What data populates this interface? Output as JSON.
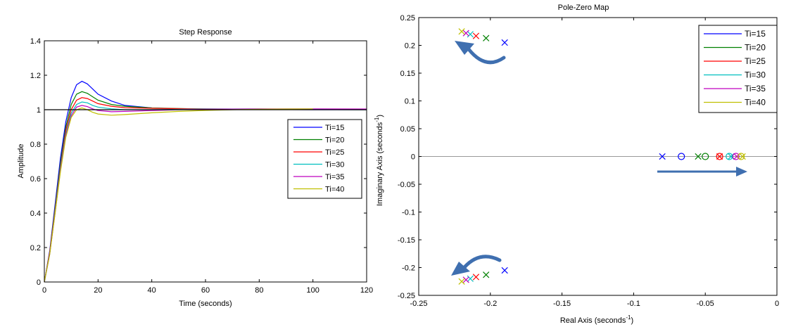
{
  "chart_data": [
    {
      "type": "line",
      "title": "Step Response",
      "xlabel": "Time (seconds)",
      "ylabel": "Amplitude",
      "xlim": [
        0,
        120
      ],
      "ylim": [
        0,
        1.4
      ],
      "xticks": [
        "0",
        "20",
        "40",
        "60",
        "80",
        "100",
        "120"
      ],
      "yticks": [
        "0",
        "0.2",
        "0.4",
        "0.6",
        "0.8",
        "1",
        "1.2",
        "1.4"
      ],
      "grid": false,
      "legend_position": "right",
      "reference_value": 1,
      "series": [
        {
          "name": "Ti=15",
          "color": "#0000ff",
          "peak_time": 14,
          "peak": 1.165,
          "end_time": 120,
          "x": [
            0,
            2,
            4,
            6,
            8,
            10,
            12,
            14,
            16,
            18,
            20,
            25,
            30,
            40,
            50,
            60,
            80,
            100,
            120
          ],
          "y": [
            0,
            0.18,
            0.45,
            0.72,
            0.93,
            1.07,
            1.145,
            1.165,
            1.15,
            1.12,
            1.09,
            1.05,
            1.025,
            1.01,
            1.005,
            1.002,
            1.001,
            1.0,
            1.0
          ]
        },
        {
          "name": "Ti=20",
          "color": "#008000",
          "peak_time": 14,
          "peak": 1.105,
          "end_time": 120,
          "x": [
            0,
            2,
            4,
            6,
            8,
            10,
            12,
            14,
            16,
            18,
            20,
            25,
            30,
            40,
            50,
            60,
            80,
            100,
            120
          ],
          "y": [
            0,
            0.17,
            0.43,
            0.69,
            0.9,
            1.03,
            1.09,
            1.105,
            1.095,
            1.075,
            1.055,
            1.03,
            1.02,
            1.01,
            1.007,
            1.004,
            1.002,
            1.001,
            1.0
          ]
        },
        {
          "name": "Ti=25",
          "color": "#ff0000",
          "peak_time": 14,
          "peak": 1.07,
          "end_time": 120,
          "x": [
            0,
            2,
            4,
            6,
            8,
            10,
            12,
            14,
            16,
            18,
            20,
            25,
            30,
            40,
            50,
            60,
            80,
            100,
            120
          ],
          "y": [
            0,
            0.17,
            0.42,
            0.67,
            0.88,
            1.0,
            1.055,
            1.07,
            1.065,
            1.05,
            1.035,
            1.02,
            1.012,
            1.008,
            1.006,
            1.005,
            1.003,
            1.002,
            1.001
          ]
        },
        {
          "name": "Ti=30",
          "color": "#00bfbf",
          "peak_time": 14,
          "peak": 1.045,
          "end_time": 120,
          "x": [
            0,
            2,
            4,
            6,
            8,
            10,
            12,
            14,
            16,
            18,
            20,
            25,
            30,
            40,
            50,
            60,
            80,
            100,
            120
          ],
          "y": [
            0,
            0.16,
            0.41,
            0.66,
            0.86,
            0.98,
            1.03,
            1.045,
            1.04,
            1.025,
            1.015,
            1.005,
            1.0,
            1.0,
            1.002,
            1.004,
            1.004,
            1.003,
            1.002
          ]
        },
        {
          "name": "Ti=35",
          "color": "#bf00bf",
          "peak_time": 14,
          "peak": 1.025,
          "end_time": 120,
          "x": [
            0,
            2,
            4,
            6,
            8,
            10,
            12,
            14,
            16,
            18,
            20,
            25,
            30,
            40,
            50,
            60,
            80,
            100,
            120
          ],
          "y": [
            0,
            0.16,
            0.4,
            0.65,
            0.85,
            0.965,
            1.015,
            1.025,
            1.018,
            1.005,
            0.995,
            0.988,
            0.99,
            0.995,
            1.0,
            1.003,
            1.005,
            1.005,
            1.004
          ]
        },
        {
          "name": "Ti=40",
          "color": "#bfbf00",
          "peak_time": 14,
          "peak": 1.01,
          "end_time": 100,
          "x": [
            0,
            2,
            4,
            6,
            8,
            10,
            12,
            14,
            16,
            18,
            20,
            25,
            30,
            40,
            50,
            60,
            70,
            80,
            90,
            100
          ],
          "y": [
            0,
            0.16,
            0.4,
            0.64,
            0.84,
            0.955,
            1.0,
            1.01,
            1.0,
            0.985,
            0.975,
            0.968,
            0.972,
            0.982,
            0.99,
            0.996,
            1.0,
            1.003,
            1.004,
            1.005
          ]
        }
      ]
    },
    {
      "type": "scatter",
      "title": "Pole-Zero Map",
      "xlabel_main": "Real Axis (seconds",
      "xlabel_sup": "-1",
      "xlabel_end": ")",
      "ylabel_main": "Imaginary Axis (seconds",
      "ylabel_sup": "-1",
      "ylabel_end": ")",
      "xlim": [
        -0.25,
        0
      ],
      "ylim": [
        -0.25,
        0.25
      ],
      "xticks": [
        "-0.25",
        "-0.2",
        "-0.15",
        "-0.1",
        "-0.05",
        "0"
      ],
      "yticks": [
        "-0.25",
        "-0.2",
        "-0.15",
        "-0.1",
        "-0.05",
        "0",
        "0.05",
        "0.1",
        "0.15",
        "0.2",
        "0.25"
      ],
      "grid": false,
      "legend_position": "top-right",
      "arrow_color": "#3f6fb0",
      "series": [
        {
          "name": "Ti=15",
          "color": "#0000ff",
          "poles": [
            [
              -0.19,
              0.205
            ],
            [
              -0.19,
              -0.205
            ],
            [
              -0.08,
              0
            ]
          ],
          "zeros": [
            [
              -0.0667,
              0
            ]
          ]
        },
        {
          "name": "Ti=20",
          "color": "#008000",
          "poles": [
            [
              -0.203,
              0.213
            ],
            [
              -0.203,
              -0.213
            ],
            [
              -0.055,
              0
            ]
          ],
          "zeros": [
            [
              -0.05,
              0
            ]
          ]
        },
        {
          "name": "Ti=25",
          "color": "#ff0000",
          "poles": [
            [
              -0.21,
              0.217
            ],
            [
              -0.21,
              -0.217
            ],
            [
              -0.04,
              0
            ]
          ],
          "zeros": [
            [
              -0.04,
              0
            ]
          ]
        },
        {
          "name": "Ti=30",
          "color": "#00bfbf",
          "poles": [
            [
              -0.214,
              0.22
            ],
            [
              -0.214,
              -0.22
            ],
            [
              -0.032,
              0
            ]
          ],
          "zeros": [
            [
              -0.0333,
              0
            ]
          ]
        },
        {
          "name": "Ti=35",
          "color": "#bf00bf",
          "poles": [
            [
              -0.217,
              0.222
            ],
            [
              -0.217,
              -0.222
            ],
            [
              -0.028,
              0
            ]
          ],
          "zeros": [
            [
              -0.0286,
              0
            ]
          ]
        },
        {
          "name": "Ti=40",
          "color": "#bfbf00",
          "poles": [
            [
              -0.22,
              0.225
            ],
            [
              -0.22,
              -0.225
            ],
            [
              -0.024,
              0
            ]
          ],
          "zeros": [
            [
              -0.025,
              0
            ]
          ]
        }
      ]
    }
  ]
}
